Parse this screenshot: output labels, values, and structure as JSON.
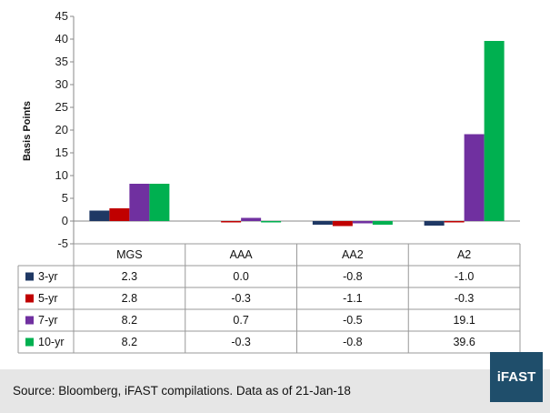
{
  "chart_data": {
    "type": "bar",
    "categories": [
      "MGS",
      "AAA",
      "AA2",
      "A2"
    ],
    "series": [
      {
        "name": "3-yr",
        "values": [
          2.3,
          0.0,
          -0.8,
          -1.0
        ],
        "labels": [
          "2.3",
          "0.0",
          "-0.8",
          "-1.0"
        ],
        "color": "#1f3864"
      },
      {
        "name": "5-yr",
        "values": [
          2.8,
          -0.3,
          -1.1,
          -0.3
        ],
        "labels": [
          "2.8",
          "-0.3",
          "-1.1",
          "-0.3"
        ],
        "color": "#c00000"
      },
      {
        "name": "7-yr",
        "values": [
          8.2,
          0.7,
          -0.5,
          19.1
        ],
        "labels": [
          "8.2",
          "0.7",
          "-0.5",
          "19.1"
        ],
        "color": "#7030a0"
      },
      {
        "name": "10-yr",
        "values": [
          8.2,
          -0.3,
          -0.8,
          39.6
        ],
        "labels": [
          "8.2",
          "-0.3",
          "-0.8",
          "39.6"
        ],
        "color": "#00b050"
      }
    ],
    "ylabel": "Basis Points",
    "ylim": [
      -5,
      45
    ],
    "yticks": [
      45,
      40,
      35,
      30,
      25,
      20,
      15,
      10,
      5,
      0,
      -5
    ],
    "grid": false,
    "legend": "data-table"
  },
  "footer": {
    "source": "Source: Bloomberg, iFAST compilations. Data as of  21-Jan-18"
  },
  "logo": {
    "text": "iFAST"
  }
}
